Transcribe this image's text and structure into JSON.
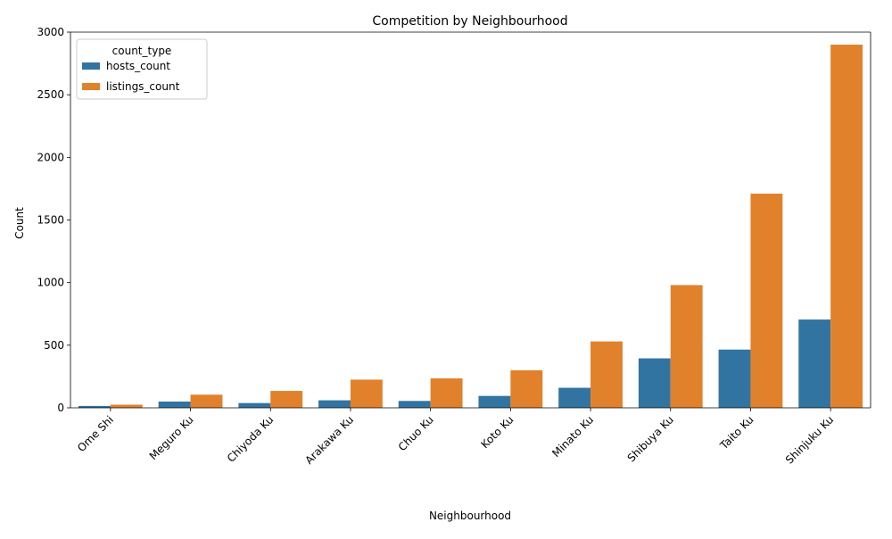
{
  "chart_data": {
    "type": "bar",
    "title": "Competition by Neighbourhood",
    "xlabel": "Neighbourhood",
    "ylabel": "Count",
    "ylim": [
      0,
      3000
    ],
    "yticks": [
      0,
      500,
      1000,
      1500,
      2000,
      2500,
      3000
    ],
    "categories": [
      "Ome Shi",
      "Meguro Ku",
      "Chiyoda Ku",
      "Arakawa Ku",
      "Chuo Ku",
      "Koto Ku",
      "Minato Ku",
      "Shibuya Ku",
      "Taito Ku",
      "Shinjuku Ku"
    ],
    "series": [
      {
        "name": "hosts_count",
        "color": "#3274a1",
        "values": [
          15,
          50,
          38,
          60,
          55,
          95,
          160,
          395,
          465,
          705
        ]
      },
      {
        "name": "listings_count",
        "color": "#e1812c",
        "values": [
          25,
          105,
          135,
          225,
          235,
          300,
          530,
          980,
          1710,
          2900
        ]
      }
    ],
    "legend": {
      "title": "count_type",
      "placement": "top-left"
    },
    "grid": false
  }
}
